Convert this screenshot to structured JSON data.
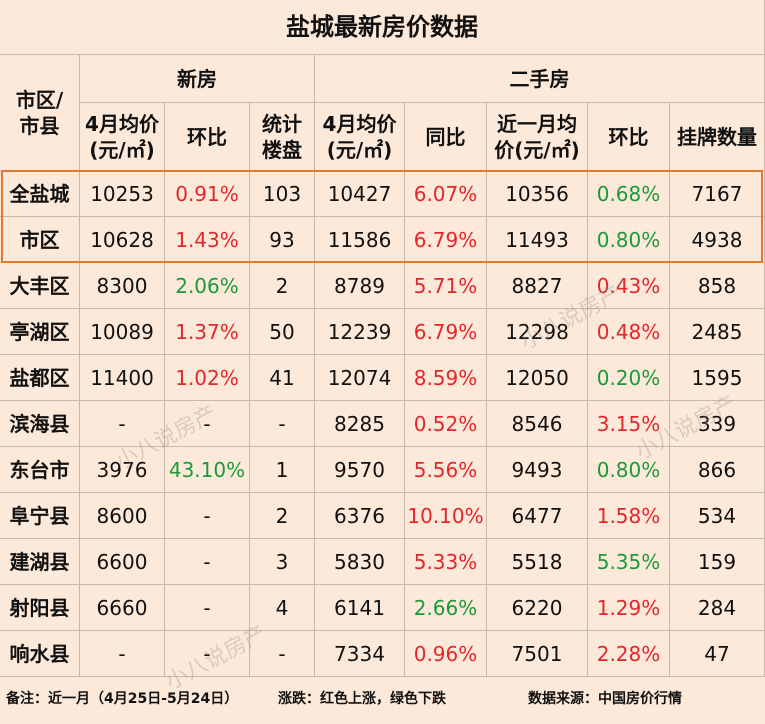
{
  "title": "盐城最新房价数据",
  "header": {
    "region": [
      "市区/",
      "市县"
    ],
    "new_group": "新房",
    "second_group": "二手房",
    "columns": [
      [
        "4月均价",
        "(元/㎡)"
      ],
      [
        "环比"
      ],
      [
        "统计",
        "楼盘"
      ],
      [
        "4月均价",
        "(元/㎡)"
      ],
      [
        "同比"
      ],
      [
        "近一月均",
        "价(元/㎡)"
      ],
      [
        "环比"
      ],
      [
        "挂牌数量"
      ]
    ]
  },
  "colors": {
    "up": "#e3262b",
    "down": "#1a9a3a"
  },
  "table": {
    "rows": [
      {
        "name": "全盐城",
        "cells": [
          "10253",
          {
            "text": "0.91%",
            "trend": "up"
          },
          "103",
          "10427",
          {
            "text": "6.07%",
            "trend": "up"
          },
          "10356",
          {
            "text": "0.68%",
            "trend": "down"
          },
          "7167"
        ]
      },
      {
        "name": "市区",
        "cells": [
          "10628",
          {
            "text": "1.43%",
            "trend": "up"
          },
          "93",
          "11586",
          {
            "text": "6.79%",
            "trend": "up"
          },
          "11493",
          {
            "text": "0.80%",
            "trend": "down"
          },
          "4938"
        ]
      },
      {
        "name": "大丰区",
        "cells": [
          "8300",
          {
            "text": "2.06%",
            "trend": "down"
          },
          "2",
          "8789",
          {
            "text": "5.71%",
            "trend": "up"
          },
          "8827",
          {
            "text": "0.43%",
            "trend": "up"
          },
          "858"
        ]
      },
      {
        "name": "亭湖区",
        "cells": [
          "10089",
          {
            "text": "1.37%",
            "trend": "up"
          },
          "50",
          "12239",
          {
            "text": "6.79%",
            "trend": "up"
          },
          "12298",
          {
            "text": "0.48%",
            "trend": "up"
          },
          "2485"
        ]
      },
      {
        "name": "盐都区",
        "cells": [
          "11400",
          {
            "text": "1.02%",
            "trend": "up"
          },
          "41",
          "12074",
          {
            "text": "8.59%",
            "trend": "up"
          },
          "12050",
          {
            "text": "0.20%",
            "trend": "down"
          },
          "1595"
        ]
      },
      {
        "name": "滨海县",
        "cells": [
          "-",
          "-",
          "-",
          "8285",
          {
            "text": "0.52%",
            "trend": "up"
          },
          "8546",
          {
            "text": "3.15%",
            "trend": "up"
          },
          "339"
        ]
      },
      {
        "name": "东台市",
        "cells": [
          "3976",
          {
            "text": "43.10%",
            "trend": "down"
          },
          "1",
          "9570",
          {
            "text": "5.56%",
            "trend": "up"
          },
          "9493",
          {
            "text": "0.80%",
            "trend": "down"
          },
          "866"
        ]
      },
      {
        "name": "阜宁县",
        "cells": [
          "8600",
          "-",
          "2",
          "6376",
          {
            "text": "10.10%",
            "trend": "up"
          },
          "6477",
          {
            "text": "1.58%",
            "trend": "up"
          },
          "534"
        ]
      },
      {
        "name": "建湖县",
        "cells": [
          "6600",
          "-",
          "3",
          "5830",
          {
            "text": "5.33%",
            "trend": "up"
          },
          "5518",
          {
            "text": "5.35%",
            "trend": "down"
          },
          "159"
        ]
      },
      {
        "name": "射阳县",
        "cells": [
          "6660",
          "-",
          "4",
          "6141",
          {
            "text": "2.66%",
            "trend": "down"
          },
          "6220",
          {
            "text": "1.29%",
            "trend": "up"
          },
          "284"
        ]
      },
      {
        "name": "响水县",
        "cells": [
          "-",
          "-",
          "-",
          "7334",
          {
            "text": "0.96%",
            "trend": "up"
          },
          "7501",
          {
            "text": "2.28%",
            "trend": "up"
          },
          "47"
        ]
      }
    ]
  },
  "footer": {
    "note": "备注：近一月（4月25日-5月24日）",
    "trend_note": "涨跌：红色上涨，绿色下跌",
    "source": "数据来源：中国房价行情"
  },
  "watermarks": [
    "小八说房产",
    "小八说房产",
    "小八说房产",
    "小八说房产"
  ]
}
